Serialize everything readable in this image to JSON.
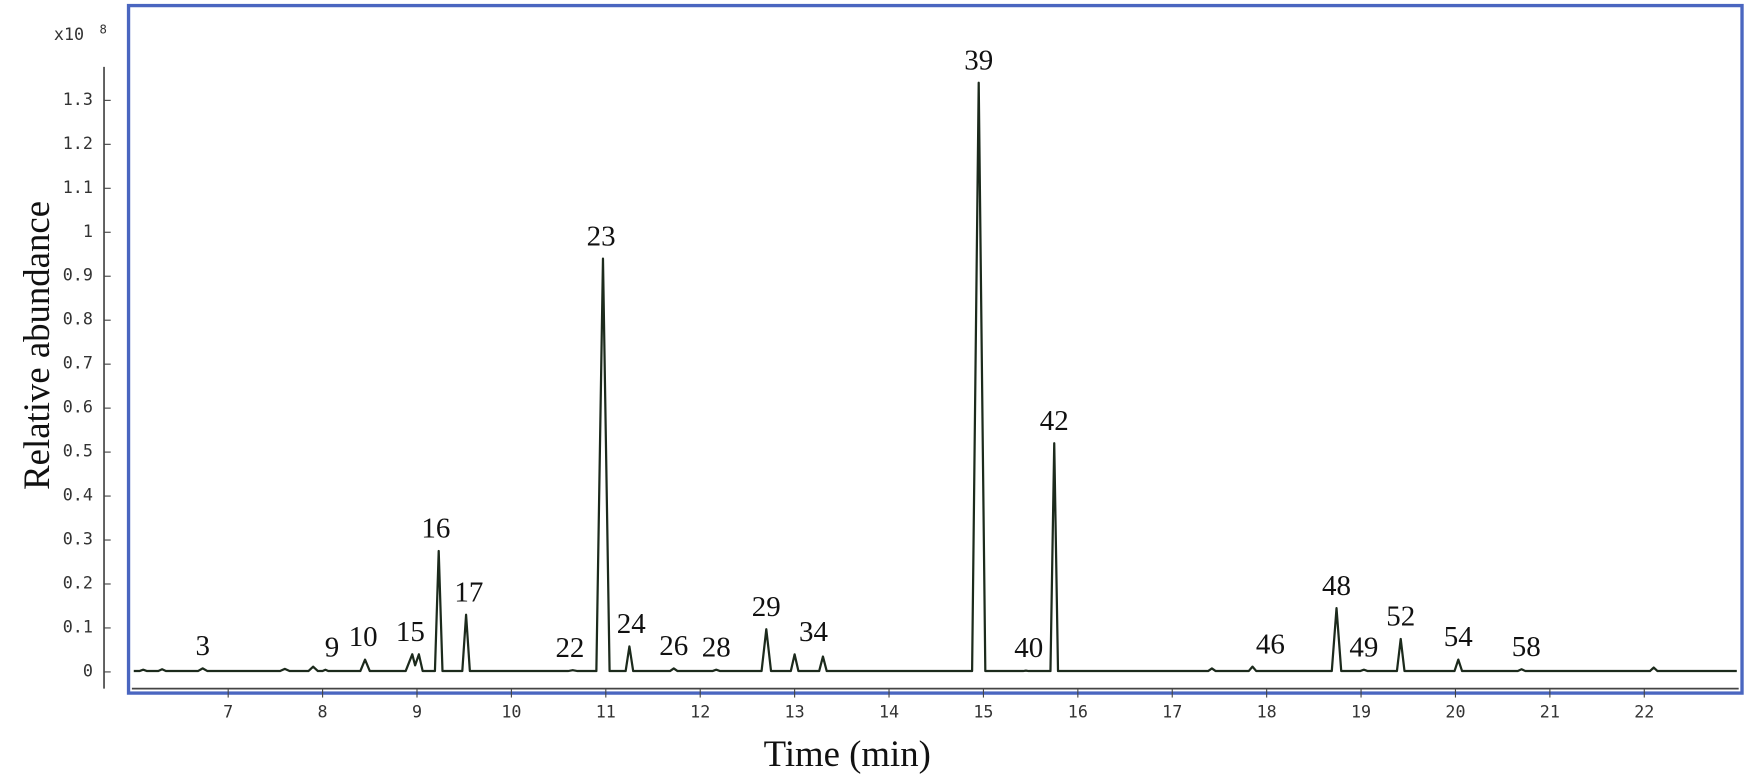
{
  "chart_data": {
    "type": "line",
    "y_label": "Relative abundance",
    "x_label": "Time (min)",
    "y_multiplier": "x10",
    "y_multiplier_exponent": "8",
    "x": [
      6.0,
      6.06,
      6.1,
      6.14,
      6.26,
      6.3,
      6.34,
      6.68,
      6.73,
      6.78,
      7.55,
      7.6,
      7.65,
      7.85,
      7.9,
      7.95,
      8.0,
      8.03,
      8.06,
      8.4,
      8.45,
      8.5,
      8.88,
      8.95,
      8.98,
      9.02,
      9.06,
      9.19,
      9.23,
      9.27,
      9.48,
      9.52,
      9.56,
      10.6,
      10.65,
      10.7,
      10.9,
      10.97,
      11.04,
      11.21,
      11.25,
      11.29,
      11.68,
      11.72,
      11.76,
      12.13,
      12.17,
      12.21,
      12.65,
      12.7,
      12.75,
      12.96,
      13.0,
      13.04,
      13.26,
      13.3,
      13.34,
      14.88,
      14.95,
      15.02,
      15.42,
      15.45,
      15.48,
      15.71,
      15.75,
      15.79,
      17.38,
      17.42,
      17.46,
      17.81,
      17.85,
      17.89,
      18.69,
      18.74,
      18.79,
      18.99,
      19.03,
      19.07,
      19.38,
      19.42,
      19.46,
      19.99,
      20.03,
      20.07,
      20.66,
      20.7,
      20.74,
      22.06,
      22.1,
      22.14,
      22.98
    ],
    "values": [
      0.002,
      0.002,
      0.005,
      0.002,
      0.002,
      0.006,
      0.002,
      0.002,
      0.008,
      0.002,
      0.002,
      0.007,
      0.002,
      0.002,
      0.012,
      0.002,
      0.002,
      0.005,
      0.002,
      0.002,
      0.028,
      0.002,
      0.002,
      0.04,
      0.015,
      0.04,
      0.002,
      0.002,
      0.275,
      0.002,
      0.002,
      0.13,
      0.002,
      0.002,
      0.004,
      0.002,
      0.002,
      0.94,
      0.002,
      0.002,
      0.058,
      0.002,
      0.002,
      0.008,
      0.002,
      0.002,
      0.005,
      0.002,
      0.002,
      0.097,
      0.002,
      0.002,
      0.04,
      0.002,
      0.002,
      0.035,
      0.002,
      0.002,
      1.34,
      0.002,
      0.002,
      0.003,
      0.002,
      0.002,
      0.52,
      0.002,
      0.002,
      0.008,
      0.002,
      0.002,
      0.012,
      0.002,
      0.002,
      0.145,
      0.002,
      0.002,
      0.005,
      0.002,
      0.002,
      0.075,
      0.002,
      0.002,
      0.028,
      0.002,
      0.002,
      0.006,
      0.002,
      0.002,
      0.01,
      0.002,
      0.002
    ],
    "color": "#1c2a1c",
    "annotations": [
      {
        "text": "3",
        "x": 6.73,
        "y": 0.008
      },
      {
        "text": "9",
        "x": 8.1,
        "y": 0.005
      },
      {
        "text": "10",
        "x": 8.43,
        "y": 0.028
      },
      {
        "text": "15",
        "x": 8.93,
        "y": 0.04
      },
      {
        "text": "16",
        "x": 9.2,
        "y": 0.275
      },
      {
        "text": "17",
        "x": 9.55,
        "y": 0.13
      },
      {
        "text": "22",
        "x": 10.62,
        "y": 0.004
      },
      {
        "text": "23",
        "x": 10.95,
        "y": 0.94
      },
      {
        "text": "24",
        "x": 11.27,
        "y": 0.058
      },
      {
        "text": "26",
        "x": 11.72,
        "y": 0.008
      },
      {
        "text": "28",
        "x": 12.17,
        "y": 0.005
      },
      {
        "text": "29",
        "x": 12.7,
        "y": 0.097
      },
      {
        "text": "34",
        "x": 13.2,
        "y": 0.04
      },
      {
        "text": "39",
        "x": 14.95,
        "y": 1.34
      },
      {
        "text": "40",
        "x": 15.48,
        "y": 0.003
      },
      {
        "text": "42",
        "x": 15.75,
        "y": 0.52
      },
      {
        "text": "46",
        "x": 18.04,
        "y": 0.012
      },
      {
        "text": "48",
        "x": 18.74,
        "y": 0.145
      },
      {
        "text": "49",
        "x": 19.03,
        "y": 0.005
      },
      {
        "text": "52",
        "x": 19.42,
        "y": 0.075
      },
      {
        "text": "54",
        "x": 20.03,
        "y": 0.028
      },
      {
        "text": "58",
        "x": 20.75,
        "y": 0.006
      }
    ],
    "xlim": [
      5.98,
      23
    ],
    "xticks": [
      7,
      8,
      9,
      10,
      11,
      12,
      13,
      14,
      15,
      16,
      17,
      18,
      19,
      20,
      21,
      22
    ],
    "ylim": [
      -0.038,
      1.508
    ],
    "yticks": [
      0,
      0.1,
      0.2,
      0.3,
      0.4,
      0.5,
      0.6,
      0.7,
      0.8,
      0.9,
      1,
      1.1,
      1.2,
      1.3
    ]
  }
}
